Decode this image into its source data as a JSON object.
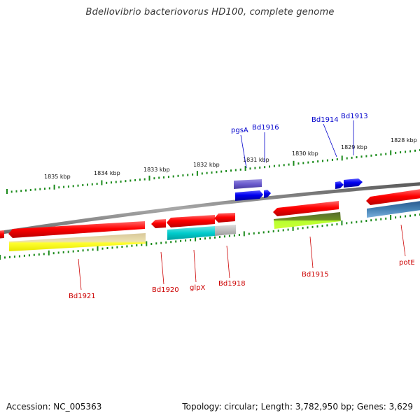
{
  "title": "Bdellovibrio bacteriovorus HD100, complete genome",
  "footer": {
    "accession": "Accession: NC_005363",
    "stats": "Topology: circular; Length: 3,782,950 bp; Genes: 3,629"
  },
  "scale": {
    "ticks": [
      {
        "label": "1835 kbp",
        "kbp": 1835
      },
      {
        "label": "1834 kbp",
        "kbp": 1834
      },
      {
        "label": "1833 kbp",
        "kbp": 1833
      },
      {
        "label": "1832 kbp",
        "kbp": 1832
      },
      {
        "label": "1831 kbp",
        "kbp": 1831
      },
      {
        "label": "1830 kbp",
        "kbp": 1830
      },
      {
        "label": "1829 kbp",
        "kbp": 1829
      },
      {
        "label": "1828 kbp",
        "kbp": 1828
      }
    ]
  },
  "genes_forward": [
    {
      "label": "pgsA",
      "color": "#0000cc"
    },
    {
      "label": "Bd1916",
      "color": "#0000cc"
    },
    {
      "label": "Bd1914",
      "color": "#0000cc"
    },
    {
      "label": "Bd1913",
      "color": "#0000cc"
    }
  ],
  "genes_reverse": [
    {
      "label": "Bd1921",
      "color": "#cc0000"
    },
    {
      "label": "Bd1920",
      "color": "#cc0000"
    },
    {
      "label": "glpX",
      "color": "#cc0000"
    },
    {
      "label": "Bd1918",
      "color": "#cc0000"
    },
    {
      "label": "Bd1915",
      "color": "#cc0000"
    },
    {
      "label": "potE",
      "color": "#cc0000"
    }
  ],
  "colors": {
    "forward_cds": "#1a1aff",
    "reverse_cds": "#ff1a1a",
    "backbone": "#808080",
    "tick": "#1a8a1a"
  }
}
